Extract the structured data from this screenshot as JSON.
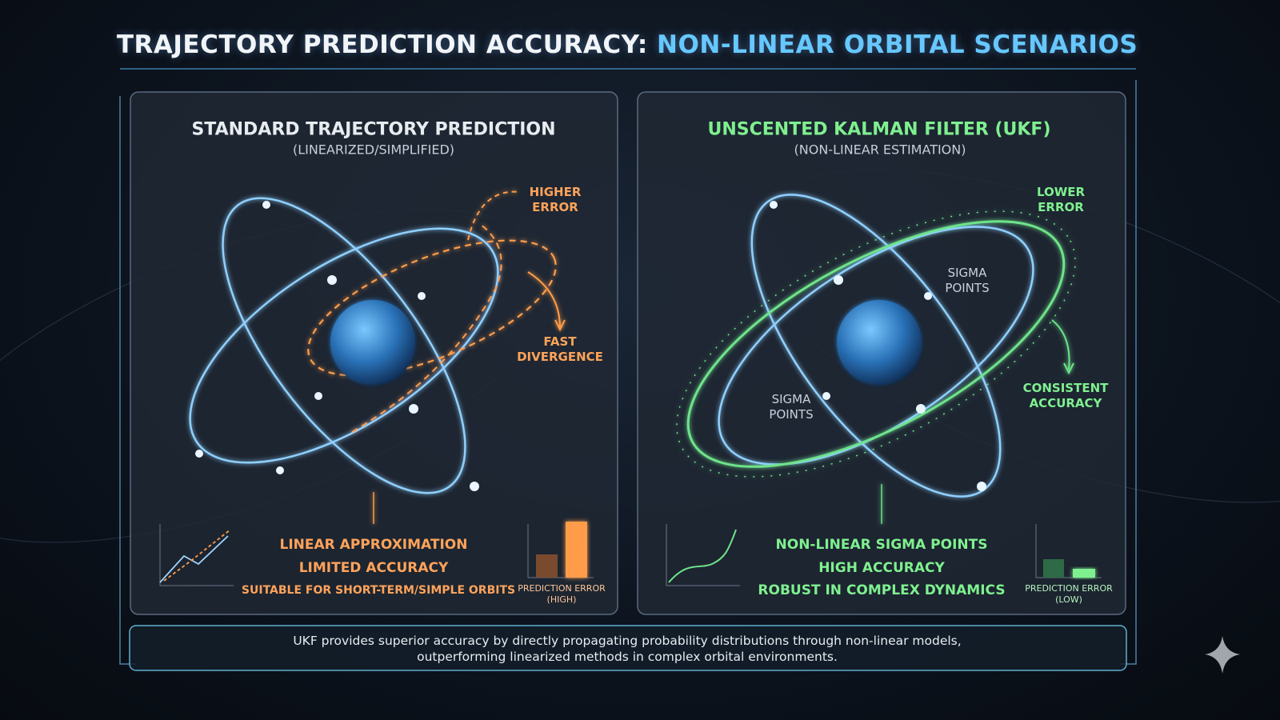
{
  "header": {
    "title_lead": "TRAJECTORY PREDICTION ACCURACY:",
    "title_highlight": "NON-LINEAR ORBITAL SCENARIOS"
  },
  "panels": [
    {
      "title": "STANDARD TRAJECTORY PREDICTION",
      "subtitle": "(LINEARIZED/SIMPLIFIED)",
      "annotations": [
        "HIGHER ERROR",
        "FAST DIVERGENCE"
      ],
      "points": [
        "LINEAR APPROXIMATION",
        "LIMITED ACCURACY",
        "SUITABLE FOR SHORT-TERM/SIMPLE ORBITS"
      ],
      "bar_label": "PREDICTION ERROR (HIGH)"
    },
    {
      "title": "UNSCENTED KALMAN FILTER (UKF)",
      "subtitle": "(NON-LINEAR ESTIMATION)",
      "annotations": [
        "LOWER ERROR",
        "SIGMA POINTS",
        "SIGMA POINTS",
        "CONSISTENT ACCURACY"
      ],
      "points": [
        "NON-LINEAR SIGMA POINTS",
        "HIGH ACCURACY",
        "ROBUST IN COMPLEX DYNAMICS"
      ],
      "bar_label": "PREDICTION ERROR (LOW)"
    }
  ],
  "footer": {
    "lines": [
      "UKF provides superior accuracy by directly propagating probability distributions through non-linear models,",
      "outperforming linearized methods in complex orbital environments."
    ]
  }
}
